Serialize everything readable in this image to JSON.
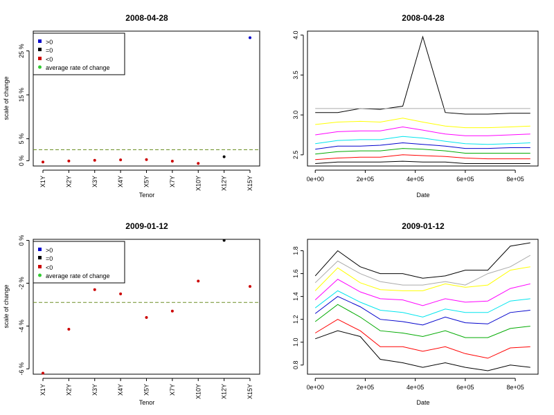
{
  "chart_data": [
    {
      "type": "scatter",
      "title": "2008-04-28",
      "xlabel": "Tenor",
      "ylabel": "scale of change",
      "categories": [
        "X1Y",
        "X2Y",
        "X3Y",
        "X4Y",
        "X5Y",
        "X7Y",
        "X10Y",
        "X12Y",
        "X15Y"
      ],
      "values": [
        -0.3,
        -0.05,
        0.1,
        0.2,
        0.25,
        -0.1,
        -0.6,
        0.9,
        28.0
      ],
      "point_colors": [
        "#cc0000",
        "#cc0000",
        "#cc0000",
        "#cc0000",
        "#cc0000",
        "#cc0000",
        "#cc0000",
        "#000000",
        "#0000cc"
      ],
      "reference_line": {
        "value": 2.5,
        "color": "#6b8e23",
        "style": "dashed"
      },
      "yticks": [
        0,
        5,
        15,
        25
      ],
      "ytick_labels": [
        "0 %",
        "5 %",
        "15 %",
        "25 %"
      ],
      "ylim": [
        -1.2,
        29.5
      ],
      "legend": {
        "position": "top-left",
        "entries": [
          {
            "label": ">0",
            "color": "#0000cc"
          },
          {
            "label": "=0",
            "color": "#000000"
          },
          {
            "label": "<0",
            "color": "#cc0000"
          },
          {
            "label": "average rate of change",
            "color": "#33cc33"
          }
        ]
      }
    },
    {
      "type": "line",
      "title": "2008-04-28",
      "xlabel": "Date",
      "ylabel": "",
      "x": [
        0,
        90000,
        180000,
        260000,
        350000,
        430000,
        520000,
        600000,
        690000,
        780000,
        860000
      ],
      "xticks": [
        0,
        200000,
        400000,
        600000,
        800000
      ],
      "xtick_labels": [
        "0e+00",
        "2e+05",
        "4e+05",
        "6e+05",
        "8e+05"
      ],
      "yticks": [
        2.5,
        3.0,
        3.5,
        4.0
      ],
      "ytick_labels": [
        "2.5",
        "3.0",
        "3.5",
        "4.0"
      ],
      "xlim": [
        -20000,
        880000
      ],
      "ylim": [
        2.36,
        4.05
      ],
      "series": [
        {
          "color": "#000000",
          "values": [
            3.03,
            3.03,
            3.08,
            3.07,
            3.11,
            3.98,
            3.03,
            3.01,
            3.01,
            3.02,
            3.02
          ]
        },
        {
          "color": "#aaaaaa",
          "values": [
            3.08,
            3.08,
            3.08,
            3.08,
            3.08,
            3.08,
            3.08,
            3.08,
            3.08,
            3.08,
            3.08
          ]
        },
        {
          "color": "#ffff00",
          "values": [
            2.88,
            2.91,
            2.92,
            2.91,
            2.96,
            2.91,
            2.86,
            2.84,
            2.84,
            2.85,
            2.86
          ]
        },
        {
          "color": "#ff00ff",
          "values": [
            2.75,
            2.79,
            2.8,
            2.8,
            2.85,
            2.81,
            2.76,
            2.74,
            2.74,
            2.75,
            2.76
          ]
        },
        {
          "color": "#00e5ee",
          "values": [
            2.64,
            2.68,
            2.69,
            2.69,
            2.73,
            2.71,
            2.67,
            2.64,
            2.63,
            2.64,
            2.65
          ]
        },
        {
          "color": "#0000cc",
          "values": [
            2.57,
            2.61,
            2.61,
            2.62,
            2.65,
            2.63,
            2.61,
            2.58,
            2.58,
            2.59,
            2.59
          ]
        },
        {
          "color": "#00aa00",
          "values": [
            2.51,
            2.54,
            2.55,
            2.55,
            2.58,
            2.57,
            2.55,
            2.52,
            2.52,
            2.52,
            2.52
          ]
        },
        {
          "color": "#ff0000",
          "values": [
            2.44,
            2.46,
            2.47,
            2.47,
            2.5,
            2.49,
            2.48,
            2.46,
            2.45,
            2.45,
            2.45
          ]
        },
        {
          "color": "#000000",
          "values": [
            2.39,
            2.41,
            2.41,
            2.41,
            2.42,
            2.41,
            2.41,
            2.39,
            2.39,
            2.39,
            2.39
          ]
        }
      ]
    },
    {
      "type": "scatter",
      "title": "2009-01-12",
      "xlabel": "Tenor",
      "ylabel": "scale of change",
      "categories": [
        "X1Y",
        "X2Y",
        "X3Y",
        "X4Y",
        "X5Y",
        "X7Y",
        "X10Y",
        "X12Y",
        "X15Y"
      ],
      "values": [
        -6.2,
        -4.15,
        -2.3,
        -2.5,
        -3.6,
        -3.3,
        -1.9,
        0.0,
        -2.15
      ],
      "point_colors": [
        "#cc0000",
        "#cc0000",
        "#cc0000",
        "#cc0000",
        "#cc0000",
        "#cc0000",
        "#cc0000",
        "#000000",
        "#cc0000"
      ],
      "reference_line": {
        "value": -2.9,
        "color": "#6b8e23",
        "style": "dashed"
      },
      "yticks": [
        0,
        -2,
        -4,
        -6
      ],
      "ytick_labels": [
        "0 %",
        "-2 %",
        "-4 %",
        "-6 %"
      ],
      "ylim": [
        -6.25,
        0.05
      ],
      "legend": {
        "position": "top-left",
        "entries": [
          {
            "label": ">0",
            "color": "#0000cc"
          },
          {
            "label": "=0",
            "color": "#000000"
          },
          {
            "label": "<0",
            "color": "#cc0000"
          },
          {
            "label": "average rate of change",
            "color": "#33cc33"
          }
        ]
      }
    },
    {
      "type": "line",
      "title": "2009-01-12",
      "xlabel": "Date",
      "ylabel": "",
      "x": [
        0,
        90000,
        180000,
        260000,
        350000,
        430000,
        520000,
        600000,
        690000,
        780000,
        860000
      ],
      "xticks": [
        0,
        200000,
        400000,
        600000,
        800000
      ],
      "xtick_labels": [
        "0e+00",
        "2e+05",
        "4e+05",
        "6e+05",
        "8e+05"
      ],
      "yticks": [
        0.8,
        1.0,
        1.2,
        1.4,
        1.6,
        1.8
      ],
      "ytick_labels": [
        "0.8",
        "1.0",
        "1.2",
        "1.4",
        "1.6",
        "1.8"
      ],
      "xlim": [
        -20000,
        880000
      ],
      "ylim": [
        0.72,
        1.9
      ],
      "series": [
        {
          "color": "#000000",
          "values": [
            1.58,
            1.8,
            1.66,
            1.6,
            1.6,
            1.56,
            1.58,
            1.63,
            1.63,
            1.84,
            1.87
          ]
        },
        {
          "color": "#aaaaaa",
          "values": [
            1.52,
            1.71,
            1.6,
            1.53,
            1.5,
            1.5,
            1.53,
            1.5,
            1.6,
            1.66,
            1.76
          ]
        },
        {
          "color": "#ffff00",
          "values": [
            1.45,
            1.65,
            1.52,
            1.46,
            1.45,
            1.45,
            1.51,
            1.48,
            1.5,
            1.63,
            1.66
          ]
        },
        {
          "color": "#ff00ff",
          "values": [
            1.37,
            1.55,
            1.44,
            1.38,
            1.37,
            1.32,
            1.38,
            1.35,
            1.36,
            1.47,
            1.51
          ]
        },
        {
          "color": "#00e5ee",
          "values": [
            1.3,
            1.45,
            1.35,
            1.28,
            1.26,
            1.22,
            1.29,
            1.26,
            1.26,
            1.36,
            1.38
          ]
        },
        {
          "color": "#0000cc",
          "values": [
            1.25,
            1.4,
            1.31,
            1.2,
            1.18,
            1.15,
            1.22,
            1.17,
            1.16,
            1.26,
            1.28
          ]
        },
        {
          "color": "#00aa00",
          "values": [
            1.18,
            1.33,
            1.22,
            1.1,
            1.08,
            1.05,
            1.1,
            1.04,
            1.04,
            1.12,
            1.14
          ]
        },
        {
          "color": "#ff0000",
          "values": [
            1.08,
            1.2,
            1.1,
            0.96,
            0.96,
            0.92,
            0.96,
            0.9,
            0.86,
            0.95,
            0.96
          ]
        },
        {
          "color": "#000000",
          "values": [
            1.03,
            1.1,
            1.05,
            0.85,
            0.82,
            0.78,
            0.82,
            0.78,
            0.75,
            0.8,
            0.78
          ]
        }
      ]
    }
  ]
}
